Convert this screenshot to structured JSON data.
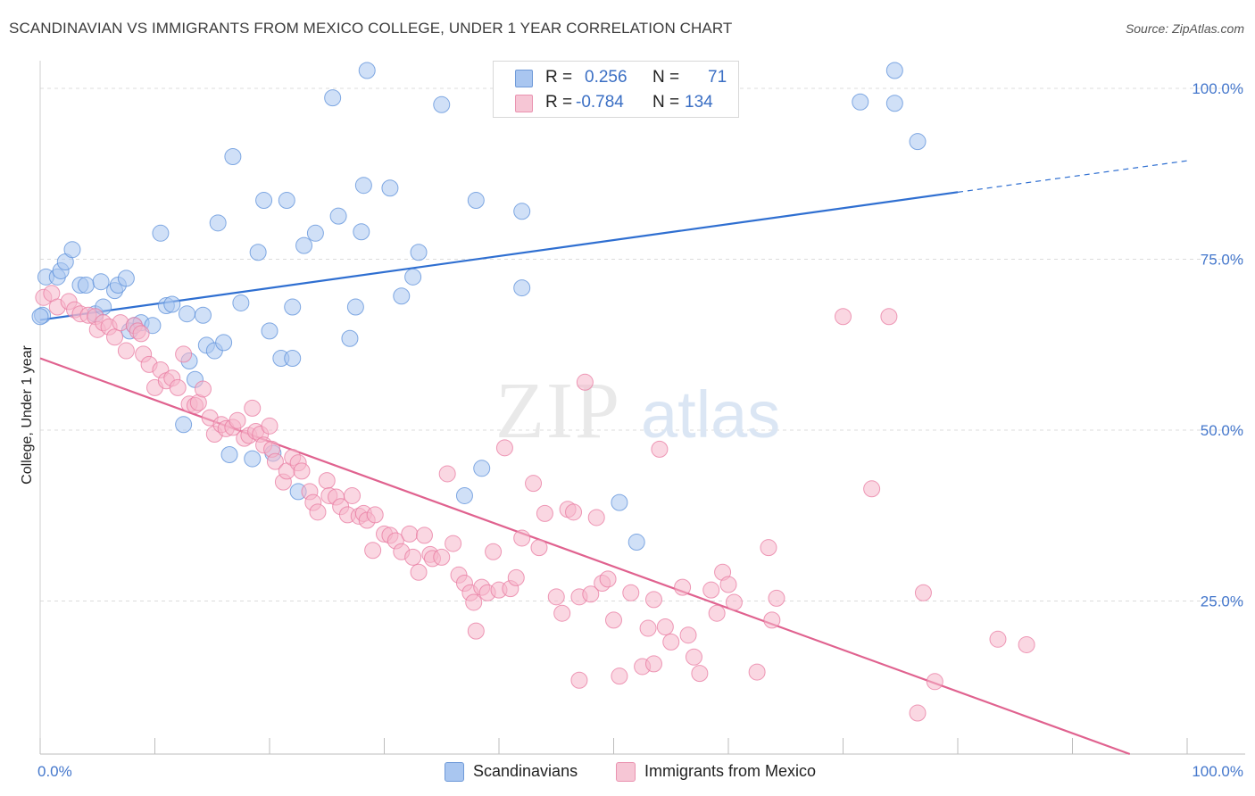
{
  "header": {
    "title": "SCANDINAVIAN VS IMMIGRANTS FROM MEXICO COLLEGE, UNDER 1 YEAR CORRELATION CHART",
    "source": "Source: ZipAtlas.com"
  },
  "watermark": {
    "part1": "ZIP",
    "part2": "atlas"
  },
  "stats": {
    "rows": [
      {
        "r_label": "R =",
        "r_value": "0.256",
        "n_label": "N =",
        "n_value": "71",
        "color": "#a9c6f0"
      },
      {
        "r_label": "R =",
        "r_value": "-0.784",
        "n_label": "N =",
        "n_value": "134",
        "color": "#f6b7cb"
      }
    ]
  },
  "legend": {
    "items": [
      {
        "label": "Scandinavians",
        "color": "#a9c6f0"
      },
      {
        "label": "Immigrants from Mexico",
        "color": "#f6b7cb"
      }
    ]
  },
  "chart_data": {
    "type": "scatter",
    "title": "SCANDINAVIAN VS IMMIGRANTS FROM MEXICO COLLEGE, UNDER 1 YEAR CORRELATION CHART",
    "xlabel": "",
    "ylabel": "College, Under 1 year",
    "xlim": [
      0,
      100
    ],
    "ylim": [
      0,
      100
    ],
    "x_tick_labels": [
      "0.0%",
      "100.0%"
    ],
    "y_tick_labels": [
      {
        "value": 100,
        "label": "100.0%"
      },
      {
        "value": 75,
        "label": "75.0%"
      },
      {
        "value": 50,
        "label": "50.0%"
      },
      {
        "value": 25,
        "label": "25.0%"
      }
    ],
    "grid": "horizontal dashed",
    "legend_position": "bottom-center",
    "series": [
      {
        "name": "Scandinavians",
        "color": "#5b8fd9",
        "fill": "#a9c6f0",
        "trend": {
          "x0": 0,
          "y0": 63.5,
          "x1": 80,
          "y1": 82.2,
          "dash_to_x": 100,
          "dash_to_y": 86.8,
          "color": "#2f6fd1"
        },
        "points": [
          [
            0.2,
            64.2
          ],
          [
            0.5,
            69.8
          ],
          [
            1.5,
            69.8
          ],
          [
            1.8,
            70.7
          ],
          [
            2.2,
            72.0
          ],
          [
            2.8,
            73.8
          ],
          [
            3.5,
            68.6
          ],
          [
            4.0,
            68.6
          ],
          [
            4.8,
            64.4
          ],
          [
            5.5,
            65.4
          ],
          [
            5.3,
            69.1
          ],
          [
            6.5,
            67.8
          ],
          [
            6.8,
            68.6
          ],
          [
            7.5,
            69.6
          ],
          [
            7.8,
            61.9
          ],
          [
            8.2,
            62.7
          ],
          [
            8.8,
            63.1
          ],
          [
            9.8,
            62.7
          ],
          [
            10.5,
            76.2
          ],
          [
            11.0,
            65.6
          ],
          [
            11.5,
            65.8
          ],
          [
            12.5,
            48.2
          ],
          [
            12.8,
            64.4
          ],
          [
            13.0,
            57.5
          ],
          [
            13.5,
            54.8
          ],
          [
            14.2,
            64.2
          ],
          [
            14.5,
            59.8
          ],
          [
            15.2,
            59.0
          ],
          [
            15.5,
            77.7
          ],
          [
            16.0,
            60.2
          ],
          [
            16.5,
            43.8
          ],
          [
            16.8,
            87.4
          ],
          [
            17.5,
            66.0
          ],
          [
            18.5,
            43.2
          ],
          [
            19.0,
            73.4
          ],
          [
            19.5,
            81.0
          ],
          [
            20.0,
            61.9
          ],
          [
            20.3,
            44.0
          ],
          [
            21.0,
            57.9
          ],
          [
            21.5,
            81.0
          ],
          [
            22.0,
            57.9
          ],
          [
            22.0,
            65.4
          ],
          [
            22.5,
            38.4
          ],
          [
            23.0,
            74.4
          ],
          [
            24.0,
            76.2
          ],
          [
            25.5,
            96.0
          ],
          [
            26.0,
            78.7
          ],
          [
            27.0,
            60.8
          ],
          [
            27.5,
            65.4
          ],
          [
            28.0,
            76.4
          ],
          [
            28.2,
            83.2
          ],
          [
            28.5,
            100.0
          ],
          [
            30.5,
            82.8
          ],
          [
            31.5,
            67.0
          ],
          [
            32.5,
            69.8
          ],
          [
            33.0,
            73.4
          ],
          [
            35.0,
            95.0
          ],
          [
            37.0,
            37.8
          ],
          [
            38.5,
            41.8
          ],
          [
            38.0,
            81.0
          ],
          [
            42.0,
            79.4
          ],
          [
            42.0,
            68.2
          ],
          [
            47.0,
            100.0
          ],
          [
            47.0,
            95.0
          ],
          [
            50.5,
            36.8
          ],
          [
            52.0,
            31.0
          ],
          [
            71.5,
            95.4
          ],
          [
            74.5,
            95.2
          ],
          [
            74.5,
            100.0
          ],
          [
            76.5,
            89.6
          ],
          [
            0.0,
            64.0
          ]
        ]
      },
      {
        "name": "Immigrants from Mexico",
        "color": "#e87aa0",
        "fill": "#f6b7cb",
        "trend": {
          "x0": 0,
          "y0": 57.9,
          "x1": 95,
          "y1": 0,
          "color": "#e0628f"
        },
        "points": [
          [
            0.3,
            66.8
          ],
          [
            1.0,
            67.4
          ],
          [
            1.5,
            65.4
          ],
          [
            2.5,
            66.2
          ],
          [
            3.0,
            65.0
          ],
          [
            3.5,
            64.4
          ],
          [
            4.2,
            64.2
          ],
          [
            4.8,
            64.0
          ],
          [
            5.0,
            62.1
          ],
          [
            5.5,
            63.1
          ],
          [
            6.0,
            62.5
          ],
          [
            6.5,
            61.0
          ],
          [
            7.0,
            63.1
          ],
          [
            7.5,
            59.0
          ],
          [
            8.2,
            62.7
          ],
          [
            8.5,
            61.9
          ],
          [
            8.8,
            61.5
          ],
          [
            9.0,
            58.5
          ],
          [
            9.5,
            57.0
          ],
          [
            10.0,
            53.6
          ],
          [
            10.5,
            56.2
          ],
          [
            11.0,
            54.6
          ],
          [
            11.5,
            55.0
          ],
          [
            12.0,
            53.6
          ],
          [
            12.5,
            58.5
          ],
          [
            13.0,
            51.2
          ],
          [
            13.5,
            51.0
          ],
          [
            13.8,
            51.4
          ],
          [
            14.2,
            53.4
          ],
          [
            14.8,
            49.2
          ],
          [
            15.2,
            46.8
          ],
          [
            15.8,
            48.2
          ],
          [
            16.2,
            47.6
          ],
          [
            16.8,
            47.8
          ],
          [
            17.2,
            48.8
          ],
          [
            17.8,
            46.2
          ],
          [
            18.2,
            46.6
          ],
          [
            18.5,
            50.6
          ],
          [
            18.8,
            47.2
          ],
          [
            19.2,
            46.8
          ],
          [
            19.5,
            45.2
          ],
          [
            20.0,
            48.0
          ],
          [
            20.2,
            44.6
          ],
          [
            20.5,
            42.8
          ],
          [
            21.2,
            39.8
          ],
          [
            21.5,
            41.4
          ],
          [
            22.0,
            43.4
          ],
          [
            22.5,
            42.6
          ],
          [
            22.8,
            41.4
          ],
          [
            23.5,
            38.4
          ],
          [
            23.8,
            36.8
          ],
          [
            24.2,
            35.4
          ],
          [
            25.0,
            40.0
          ],
          [
            25.2,
            37.8
          ],
          [
            25.8,
            37.6
          ],
          [
            26.2,
            36.2
          ],
          [
            26.8,
            35.0
          ],
          [
            27.2,
            37.8
          ],
          [
            27.8,
            34.8
          ],
          [
            28.2,
            35.2
          ],
          [
            28.5,
            34.2
          ],
          [
            29.0,
            29.8
          ],
          [
            29.2,
            35.0
          ],
          [
            30.0,
            32.2
          ],
          [
            30.5,
            32.0
          ],
          [
            31.0,
            31.2
          ],
          [
            31.5,
            29.6
          ],
          [
            32.2,
            32.2
          ],
          [
            32.5,
            28.8
          ],
          [
            33.0,
            26.6
          ],
          [
            33.5,
            32.0
          ],
          [
            34.0,
            29.2
          ],
          [
            34.2,
            28.6
          ],
          [
            35.0,
            28.8
          ],
          [
            35.5,
            41.0
          ],
          [
            36.0,
            30.8
          ],
          [
            36.5,
            26.2
          ],
          [
            37.0,
            25.0
          ],
          [
            37.5,
            23.6
          ],
          [
            37.8,
            22.2
          ],
          [
            38.0,
            18.0
          ],
          [
            38.5,
            24.4
          ],
          [
            39.0,
            23.6
          ],
          [
            39.5,
            29.6
          ],
          [
            40.0,
            24.0
          ],
          [
            40.5,
            44.8
          ],
          [
            41.0,
            24.2
          ],
          [
            41.5,
            25.8
          ],
          [
            42.0,
            31.6
          ],
          [
            43.0,
            39.6
          ],
          [
            43.5,
            30.2
          ],
          [
            44.0,
            35.2
          ],
          [
            45.0,
            23.0
          ],
          [
            45.5,
            20.6
          ],
          [
            46.0,
            35.8
          ],
          [
            46.5,
            35.4
          ],
          [
            47.0,
            23.0
          ],
          [
            47.5,
            54.4
          ],
          [
            48.0,
            23.4
          ],
          [
            48.5,
            34.6
          ],
          [
            49.0,
            25.0
          ],
          [
            49.5,
            25.6
          ],
          [
            50.0,
            19.6
          ],
          [
            50.5,
            11.4
          ],
          [
            51.5,
            23.6
          ],
          [
            52.5,
            12.8
          ],
          [
            53.0,
            18.4
          ],
          [
            53.5,
            22.6
          ],
          [
            53.5,
            13.2
          ],
          [
            54.0,
            44.6
          ],
          [
            54.5,
            18.6
          ],
          [
            55.0,
            16.4
          ],
          [
            56.0,
            24.4
          ],
          [
            56.5,
            17.4
          ],
          [
            57.0,
            14.2
          ],
          [
            57.5,
            11.8
          ],
          [
            58.5,
            24.0
          ],
          [
            59.0,
            20.6
          ],
          [
            59.5,
            26.6
          ],
          [
            60.0,
            24.8
          ],
          [
            60.5,
            22.2
          ],
          [
            62.5,
            12.0
          ],
          [
            63.5,
            30.2
          ],
          [
            63.8,
            19.6
          ],
          [
            64.2,
            22.8
          ],
          [
            70.0,
            64.0
          ],
          [
            74.0,
            64.0
          ],
          [
            72.5,
            38.8
          ],
          [
            77.0,
            23.6
          ],
          [
            78.0,
            10.6
          ],
          [
            76.5,
            6.0
          ],
          [
            83.5,
            16.8
          ],
          [
            86.0,
            16.0
          ],
          [
            47.0,
            10.8
          ]
        ]
      }
    ]
  }
}
